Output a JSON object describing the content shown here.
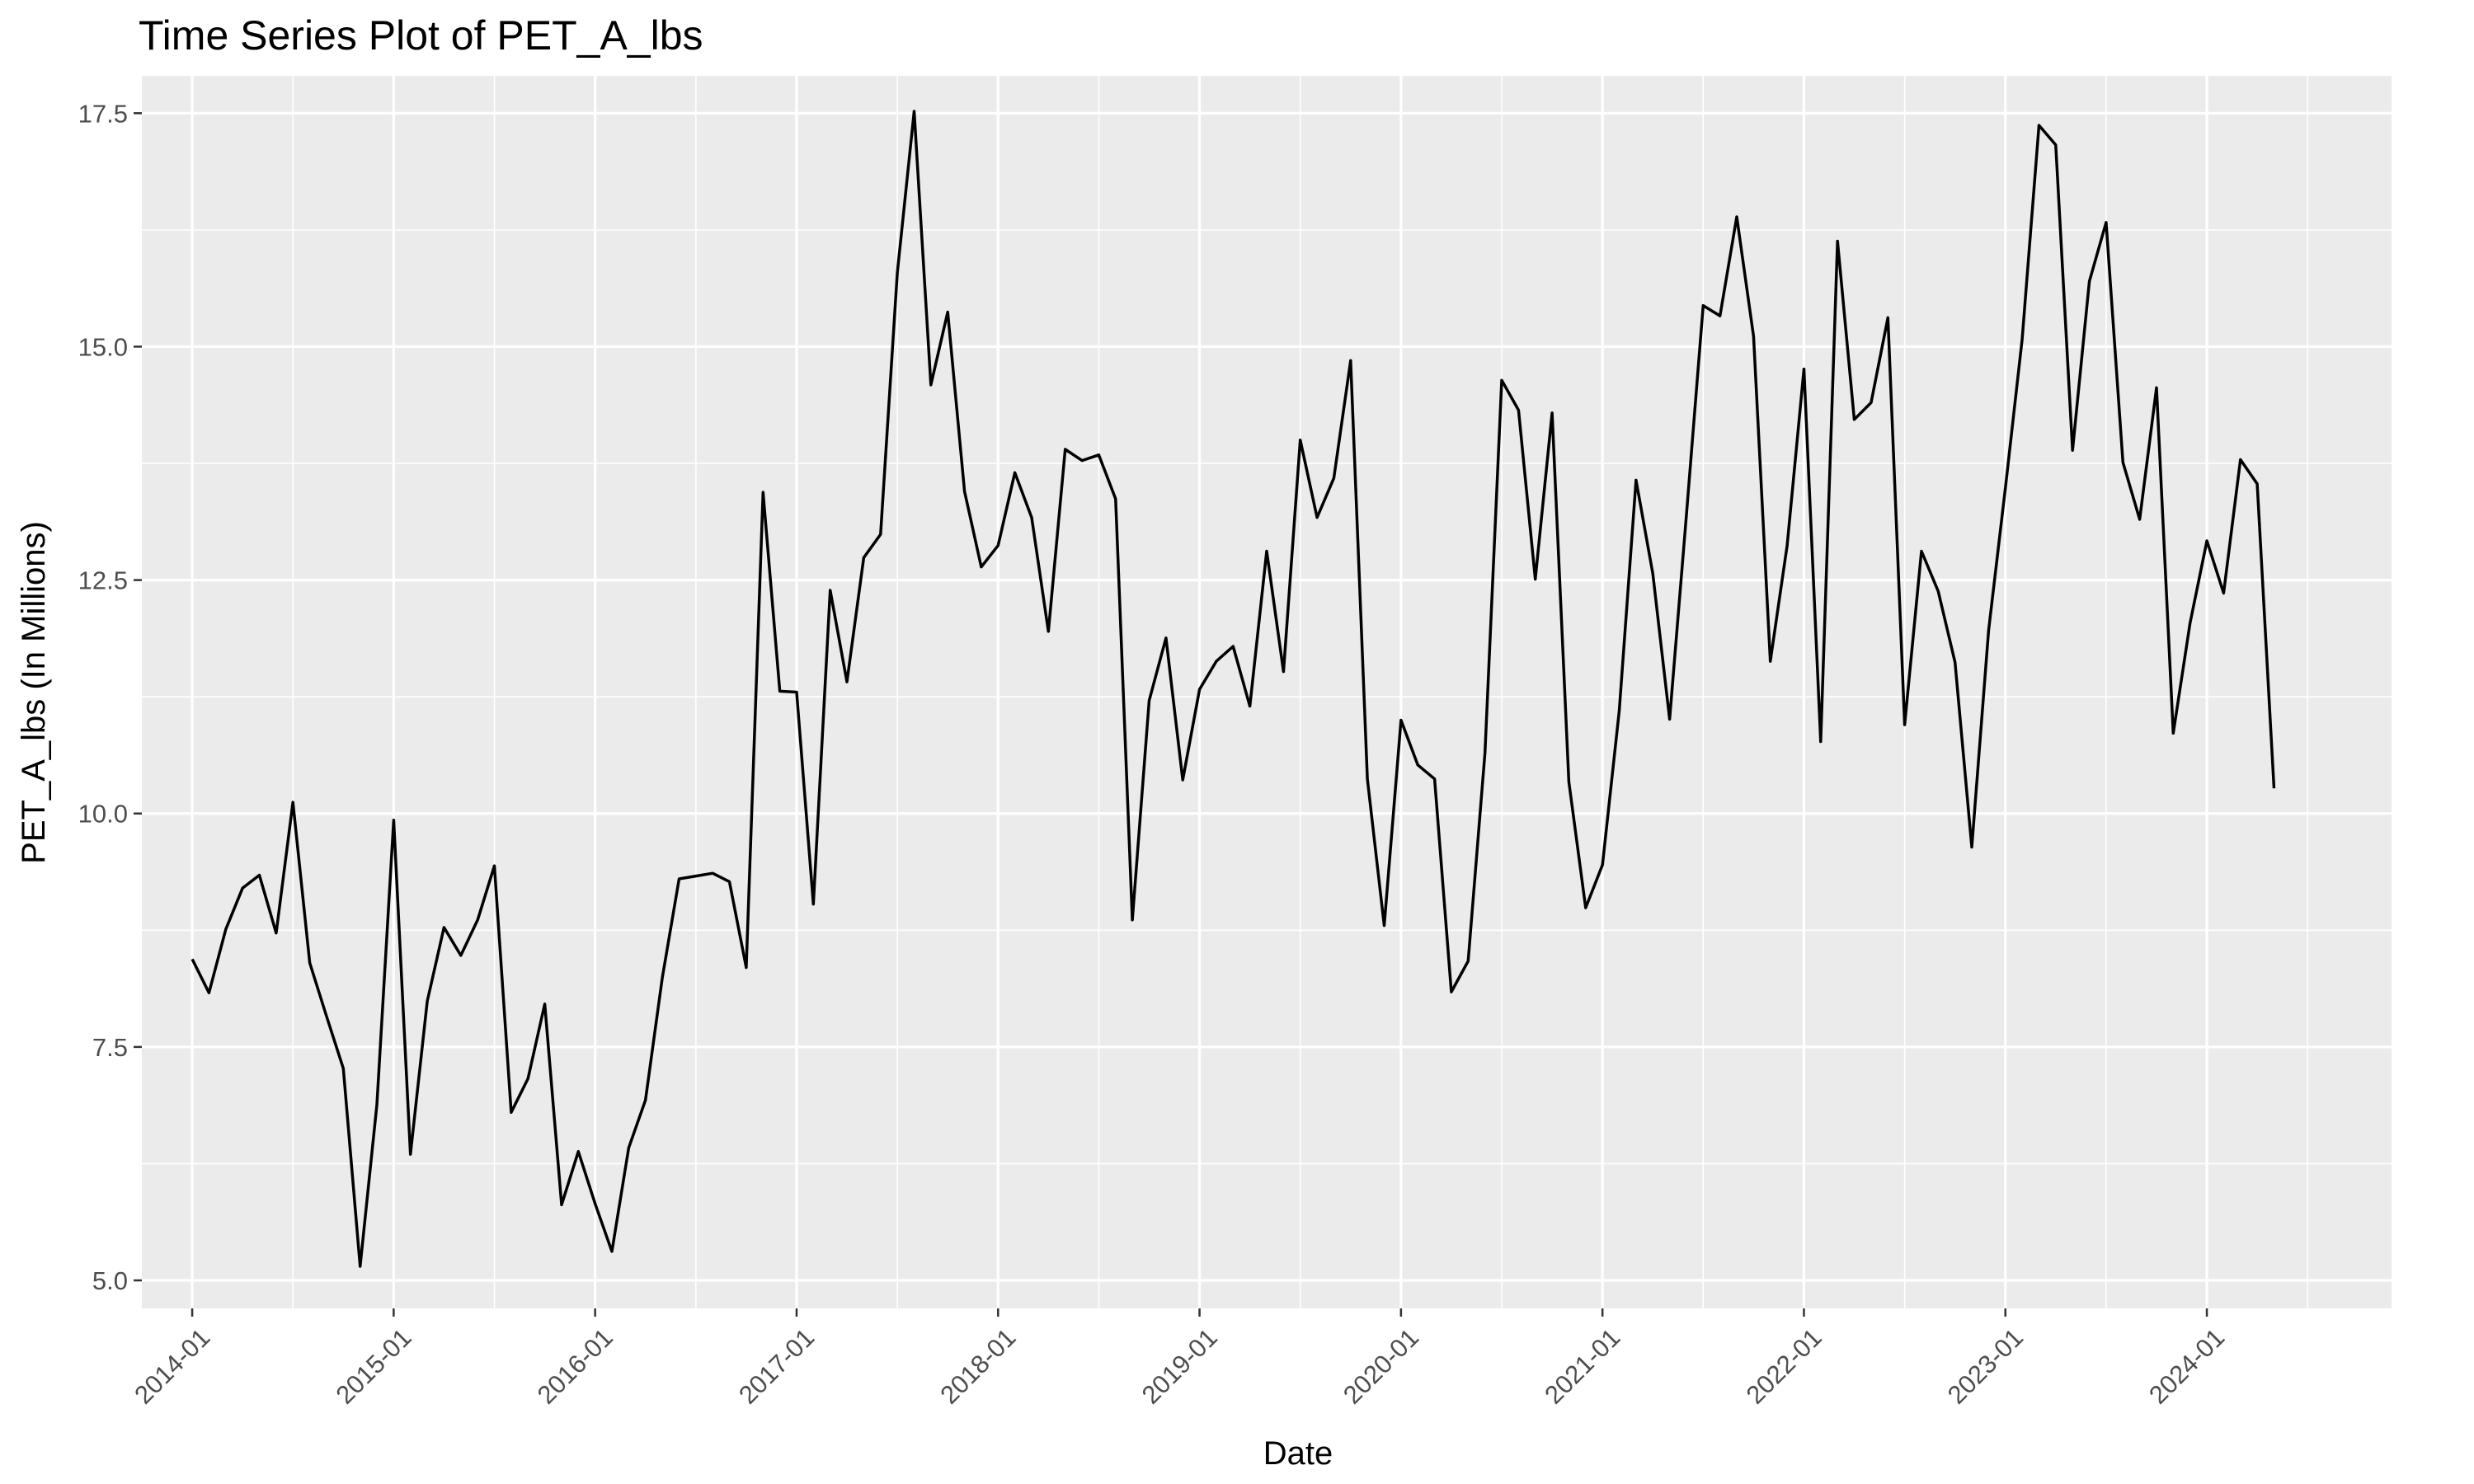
{
  "chart_data": {
    "type": "line",
    "title": "Time Series Plot of PET_A_lbs",
    "xlabel": "Date",
    "ylabel": "PET_A_lbs (In Millions)",
    "x_tick_labels": [
      "2014-01",
      "2015-01",
      "2016-01",
      "2017-01",
      "2018-01",
      "2019-01",
      "2020-01",
      "2021-01",
      "2022-01",
      "2023-01",
      "2024-01"
    ],
    "y_ticks": [
      5.0,
      7.5,
      10.0,
      12.5,
      15.0,
      17.5
    ],
    "y_tick_labels": [
      "5.0",
      "7.5",
      "10.0",
      "12.5",
      "15.0",
      "17.5"
    ],
    "xlim": [
      "2013-10",
      "2024-12"
    ],
    "ylim": [
      4.7,
      17.9
    ],
    "grid": true,
    "colors": {
      "panel": "#ebebeb",
      "grid": "#ffffff",
      "line": "#000000",
      "tick_text": "#4d4d4d"
    },
    "series": [
      {
        "x": [
          "2014-01",
          "2014-02",
          "2014-03",
          "2014-04",
          "2014-05",
          "2014-06",
          "2014-07",
          "2014-08",
          "2014-09",
          "2014-10",
          "2014-11",
          "2014-12",
          "2015-01",
          "2015-02",
          "2015-03",
          "2015-04",
          "2015-05",
          "2015-06",
          "2015-07",
          "2015-08",
          "2015-09",
          "2015-10",
          "2015-11",
          "2015-12",
          "2016-01",
          "2016-02",
          "2016-03",
          "2016-04",
          "2016-05",
          "2016-06",
          "2016-07",
          "2016-08",
          "2016-09",
          "2016-10",
          "2016-11",
          "2016-12",
          "2017-01",
          "2017-02",
          "2017-03",
          "2017-04",
          "2017-05",
          "2017-06",
          "2017-07",
          "2017-08",
          "2017-09",
          "2017-10",
          "2017-11",
          "2017-12",
          "2018-01",
          "2018-02",
          "2018-03",
          "2018-04",
          "2018-05",
          "2018-06",
          "2018-07",
          "2018-08",
          "2018-09",
          "2018-10",
          "2018-11",
          "2018-12",
          "2019-01",
          "2019-02",
          "2019-03",
          "2019-04",
          "2019-05",
          "2019-06",
          "2019-07",
          "2019-08",
          "2019-09",
          "2019-10",
          "2019-11",
          "2019-12",
          "2020-01",
          "2020-02",
          "2020-03",
          "2020-04",
          "2020-05",
          "2020-06",
          "2020-07",
          "2020-08",
          "2020-09",
          "2020-10",
          "2020-11",
          "2020-12",
          "2021-01",
          "2021-02",
          "2021-03",
          "2021-04",
          "2021-05",
          "2021-06",
          "2021-07",
          "2021-08",
          "2021-09",
          "2021-10",
          "2021-11",
          "2021-12",
          "2022-01",
          "2022-02",
          "2022-03",
          "2022-04",
          "2022-05",
          "2022-06",
          "2022-07",
          "2022-08",
          "2022-09",
          "2022-10",
          "2022-11",
          "2022-12",
          "2023-01",
          "2023-02",
          "2023-03",
          "2023-04",
          "2023-05",
          "2023-06",
          "2023-07",
          "2023-08",
          "2023-09",
          "2023-10",
          "2023-11",
          "2023-12",
          "2024-01",
          "2024-02",
          "2024-03",
          "2024-04",
          "2024-05"
        ],
        "y": [
          8.44,
          8.08,
          8.76,
          9.2,
          9.34,
          8.72,
          10.12,
          8.4,
          7.83,
          7.27,
          5.15,
          6.88,
          9.93,
          6.35,
          7.99,
          8.78,
          8.48,
          8.86,
          9.44,
          6.8,
          7.16,
          7.96,
          5.81,
          6.38,
          5.82,
          5.31,
          6.42,
          6.93,
          8.24,
          9.3,
          9.33,
          9.36,
          9.27,
          8.35,
          13.44,
          11.31,
          11.3,
          9.03,
          12.39,
          11.41,
          12.74,
          12.99,
          15.79,
          17.52,
          14.59,
          15.37,
          13.45,
          12.64,
          12.87,
          13.65,
          13.17,
          11.95,
          13.9,
          13.78,
          13.84,
          13.37,
          8.86,
          11.21,
          11.88,
          10.36,
          11.33,
          11.63,
          11.79,
          11.15,
          12.81,
          11.52,
          14.0,
          13.17,
          13.59,
          14.85,
          10.37,
          8.8,
          11.0,
          10.52,
          10.37,
          8.09,
          8.42,
          10.65,
          14.64,
          14.32,
          12.51,
          14.29,
          10.34,
          8.99,
          9.45,
          11.1,
          13.57,
          12.57,
          11.01,
          13.2,
          15.44,
          15.33,
          16.39,
          15.11,
          11.63,
          12.87,
          14.76,
          10.77,
          16.13,
          14.22,
          14.4,
          15.31,
          10.95,
          12.81,
          12.38,
          11.62,
          9.64,
          11.96,
          13.49,
          15.08,
          17.37,
          17.16,
          13.89,
          15.7,
          16.33,
          13.76,
          13.15,
          14.56,
          10.86,
          12.04,
          12.92,
          12.36,
          13.79,
          13.53,
          10.27
        ]
      }
    ]
  }
}
